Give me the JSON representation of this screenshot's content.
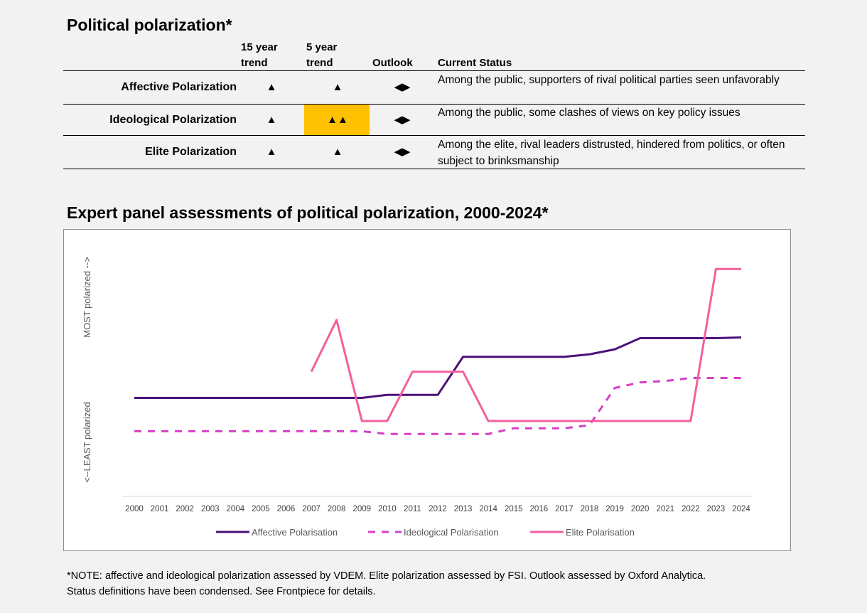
{
  "section1": {
    "title": "Political polarization*",
    "headers": {
      "trend15_line1": "15 year",
      "trend15_line2": "trend",
      "trend5_line1": "5 year",
      "trend5_line2": "trend",
      "outlook": "Outlook",
      "status": "Current Status"
    },
    "rows": [
      {
        "name": "Affective Polarization",
        "trend15": "▲",
        "trend5": "▲",
        "outlook": "◀▶",
        "status": "Among the public, supporters of rival political parties seen unfavorably",
        "highlight": false
      },
      {
        "name": "Ideological Polarization",
        "trend15": "▲",
        "trend5": "▲▲",
        "outlook": "◀▶",
        "status": "Among the public, some clashes of views on key policy issues",
        "highlight": true
      },
      {
        "name": "Elite Polarization",
        "trend15": "▲",
        "trend5": "▲",
        "outlook": "◀▶",
        "status": "Among the elite, rival leaders distrusted, hindered from politics, or often subject to brinksmanship",
        "highlight": false
      }
    ],
    "highlight_color": "#ffc000"
  },
  "section2": {
    "title": "Expert panel assessments of political polarization, 2000-2024*"
  },
  "chart_data": {
    "type": "line",
    "title": "",
    "ylabel_top": "MOST polarized -->",
    "ylabel_bottom": "<--LEAST polarized",
    "x": [
      "2000",
      "2001",
      "2002",
      "2003",
      "2004",
      "2005",
      "2006",
      "2007",
      "2008",
      "2009",
      "2010",
      "2011",
      "2012",
      "2013",
      "2014",
      "2015",
      "2016",
      "2017",
      "2018",
      "2019",
      "2020",
      "2021",
      "2022",
      "2023",
      "2024"
    ],
    "ylim": [
      0,
      100
    ],
    "grid": false,
    "legend_position": "bottom",
    "series": [
      {
        "name": "Affective Polarisation",
        "color": "#4b1279",
        "style": "solid",
        "values": [
          41,
          41,
          41,
          41,
          41,
          41,
          41,
          41,
          41,
          41,
          42.2,
          42.2,
          42.2,
          57.5,
          57.5,
          57.5,
          57.5,
          57.5,
          58.5,
          60.5,
          65,
          65,
          65,
          65,
          65.3
        ]
      },
      {
        "name": "Ideological Polarisation",
        "color": "#d63fc7",
        "style": "dashed",
        "values": [
          27.6,
          27.6,
          27.6,
          27.6,
          27.6,
          27.6,
          27.6,
          27.6,
          27.6,
          27.6,
          26.5,
          26.5,
          26.5,
          26.5,
          26.5,
          28.8,
          28.8,
          28.8,
          30,
          45,
          47.2,
          47.8,
          49,
          49,
          49
        ]
      },
      {
        "name": "Elite Polarization_",
        "color": "#f2609e",
        "style": "solid",
        "values": [
          null,
          null,
          null,
          null,
          null,
          null,
          null,
          51.5,
          72.3,
          31.7,
          31.7,
          51.5,
          51.5,
          51.5,
          31.7,
          31.7,
          31.7,
          31.7,
          31.7,
          31.7,
          31.7,
          31.7,
          31.7,
          92.8,
          92.8
        ]
      }
    ],
    "legend": [
      "Affective Polarisation",
      "Ideological Polarisation",
      "Elite Polarisation"
    ]
  },
  "note": {
    "line1": "*NOTE: affective and ideological polarization assessed by VDEM. Elite polarization assessed by FSI. Outlook assessed by Oxford Analytica.",
    "line2": "Status definitions have been condensed. See Frontpiece for details."
  }
}
